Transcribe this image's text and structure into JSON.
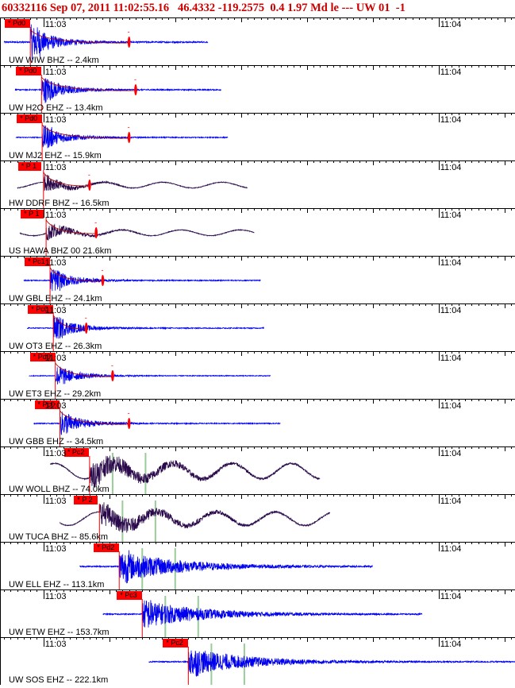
{
  "header": {
    "event_id": "60332116",
    "datetime": "Sep 07, 2011 11:02:55.16",
    "lat": "46.4332",
    "lon": "-119.2575",
    "depth": "0.4",
    "magnitude": "1.97 Md",
    "flags": "le ---",
    "network": "UW",
    "version": "01",
    "extra": "-1"
  },
  "time_labels": {
    "left": "11:03",
    "right": "11:04"
  },
  "colors": {
    "short_period": "#0000ee",
    "broadband": "#2a0a4a",
    "pick": "#ff0000",
    "coda": "#99cc99",
    "grid": "#000000"
  },
  "chart_data": {
    "type": "seismogram-record-section",
    "title": "60332116 Sep 07, 2011 11:02:55.16   46.4332 -119.2575  0.4 1.97 Md le --- UW 01  -1",
    "x_axis": {
      "unit": "seconds after 11:03:00",
      "range": [
        -6.6,
        71.6
      ],
      "tick_labels": [
        "11:03",
        "11:04"
      ]
    },
    "traces": [
      {
        "label": "UW WIW BHZ -- 2.4km",
        "pick": "Pd0",
        "pick_time": -2.0,
        "coda_end": 13.0,
        "amp": 1.0,
        "trace_end": 25.0,
        "color": "sp"
      },
      {
        "label": "UW H2O EHZ -- 13.4km",
        "pick": "Pd0",
        "pick_time": -0.3,
        "coda_end": 14.0,
        "amp": 0.8,
        "trace_end": 27.0,
        "color": "sp"
      },
      {
        "label": "UW MJ2 EHZ -- 15.9km",
        "pick": "Pd0",
        "pick_time": -0.2,
        "coda_end": 13.0,
        "amp": 0.7,
        "trace_end": 28.0,
        "color": "sp"
      },
      {
        "label": "HW DDRF BHZ -- 16.5km",
        "pick": "P 1",
        "pick_time": 0.0,
        "coda_end": 7.0,
        "amp": 0.55,
        "trace_end": 31.0,
        "color": "bb"
      },
      {
        "label": "US HAWA BHZ 00 21.6km",
        "pick": "P 1",
        "pick_time": 0.4,
        "coda_end": 8.0,
        "amp": 0.55,
        "trace_end": 32.0,
        "color": "bb"
      },
      {
        "label": "UW GBL EHZ -- 24.1km",
        "pick": "Pc1",
        "pick_time": 1.0,
        "coda_end": 9.0,
        "amp": 0.7,
        "trace_end": 33.0,
        "color": "sp"
      },
      {
        "label": "UW OT3 EHZ -- 26.3km",
        "pick": "Pc0",
        "pick_time": 1.5,
        "coda_end": 6.5,
        "amp": 0.7,
        "trace_end": 33.5,
        "color": "sp"
      },
      {
        "label": "UW ET3 EHZ -- 29.2km",
        "pick": "Pd0",
        "pick_time": 1.8,
        "coda_end": 10.5,
        "amp": 0.6,
        "trace_end": 34.5,
        "color": "sp"
      },
      {
        "label": "UW GBB EHZ -- 34.5km",
        "pick": "Pc0",
        "pick_time": 2.5,
        "coda_end": 13.0,
        "amp": 0.7,
        "trace_end": 36.0,
        "color": "sp"
      },
      {
        "label": "UW WOLL BHZ -- 74.0km",
        "pick": "Pc2",
        "pick_time": 7.0,
        "coda_end": null,
        "amp": 0.8,
        "trace_end": 42.0,
        "color": "bb"
      },
      {
        "label": "UW TUCA BHZ -- 85.6km",
        "pick": "P 2",
        "pick_time": 8.5,
        "coda_end": null,
        "amp": 0.7,
        "trace_end": 43.5,
        "color": "bb"
      },
      {
        "label": "UW ELL EHZ -- 113.1km",
        "pick": "Pd2",
        "pick_time": 11.5,
        "coda_end": null,
        "amp": 0.9,
        "trace_end": 50.0,
        "color": "sp"
      },
      {
        "label": "UW ETW EHZ -- 153.7km",
        "pick": "Pc3",
        "pick_time": 15.0,
        "coda_end": null,
        "amp": 0.8,
        "trace_end": 57.5,
        "color": "sp"
      },
      {
        "label": "UW SOS EHZ -- 222.1km",
        "pick": "Pc2",
        "pick_time": 22.0,
        "coda_end": null,
        "amp": 0.8,
        "trace_end": 71.6,
        "color": "sp"
      }
    ]
  }
}
